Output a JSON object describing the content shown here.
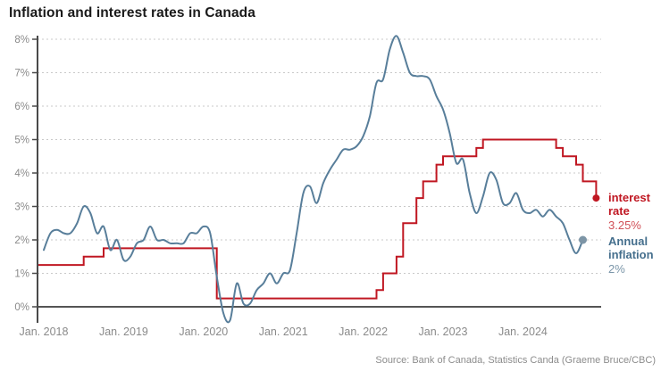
{
  "page": {
    "title": "Inflation and interest rates in Canada",
    "source": "Source: Bank of Canada, Statistics Canda (Graeme Bruce/CBC)"
  },
  "legend": {
    "interest": {
      "label": "interest rate",
      "value": "3.25%",
      "label_color": "#c01722",
      "value_color": "#d05057"
    },
    "inflation": {
      "label": "Annual inflation",
      "value": "2%",
      "label_color": "#456f8d",
      "value_color": "#7b96a9"
    }
  },
  "chart_data": {
    "type": "line",
    "title": "Inflation and interest rates in Canada",
    "xlabel": "",
    "ylabel": "",
    "ylim": [
      0,
      8
    ],
    "grid": "horizontal-dotted",
    "months_start": "Jan 2018",
    "x_tick_labels": [
      "Jan. 2018",
      "Jan. 2019",
      "Jan. 2020",
      "Jan. 2021",
      "Jan. 2022",
      "Jan. 2023",
      "Jan. 2024"
    ],
    "x_tick_month_index": [
      0,
      12,
      24,
      36,
      48,
      60,
      72
    ],
    "y_tick_labels": [
      "0%",
      "1%",
      "2%",
      "3%",
      "4%",
      "5%",
      "6%",
      "7%",
      "8%"
    ],
    "legend_position": "right-end-of-lines",
    "series": [
      {
        "name": "interest rate",
        "style": "step",
        "color": "#c01722",
        "end_dot_color": "#c01722",
        "current_value": "3.25%",
        "points_format": "[month_index_from_Jan2018, percent]",
        "points": [
          [
            0,
            1.25
          ],
          [
            6,
            1.5
          ],
          [
            9,
            1.75
          ],
          [
            26,
            0.25
          ],
          [
            50,
            0.5
          ],
          [
            51,
            1.0
          ],
          [
            53,
            1.5
          ],
          [
            54,
            2.5
          ],
          [
            56,
            3.25
          ],
          [
            57,
            3.75
          ],
          [
            59,
            4.25
          ],
          [
            60,
            4.5
          ],
          [
            65,
            4.75
          ],
          [
            66,
            5.0
          ],
          [
            77,
            4.75
          ],
          [
            78,
            4.5
          ],
          [
            80,
            4.25
          ],
          [
            81,
            3.75
          ],
          [
            83,
            3.25
          ]
        ]
      },
      {
        "name": "Annual inflation",
        "style": "smooth-line",
        "color": "#587e9a",
        "end_dot_color": "#7d95a6",
        "current_value": "2%",
        "monthly_values_format": "percent, monthly from Jan 2018 to Oct 2024",
        "monthly_values": [
          1.7,
          2.2,
          2.3,
          2.2,
          2.2,
          2.5,
          3.0,
          2.8,
          2.2,
          2.4,
          1.7,
          2.0,
          1.4,
          1.5,
          1.9,
          2.0,
          2.4,
          2.0,
          2.0,
          1.9,
          1.9,
          1.9,
          2.2,
          2.2,
          2.4,
          2.2,
          0.9,
          -0.2,
          -0.4,
          0.7,
          0.1,
          0.1,
          0.5,
          0.7,
          1.0,
          0.7,
          1.0,
          1.1,
          2.2,
          3.4,
          3.6,
          3.1,
          3.7,
          4.1,
          4.4,
          4.7,
          4.7,
          4.8,
          5.1,
          5.7,
          6.7,
          6.8,
          7.7,
          8.1,
          7.6,
          7.0,
          6.9,
          6.9,
          6.8,
          6.3,
          5.9,
          5.2,
          4.3,
          4.4,
          3.4,
          2.8,
          3.3,
          4.0,
          3.8,
          3.1,
          3.1,
          3.4,
          2.9,
          2.8,
          2.9,
          2.7,
          2.9,
          2.7,
          2.5,
          2.0,
          1.6,
          2.0
        ]
      }
    ],
    "source": "Source: Bank of Canada, Statistics Canda (Graeme Bruce/CBC)"
  }
}
